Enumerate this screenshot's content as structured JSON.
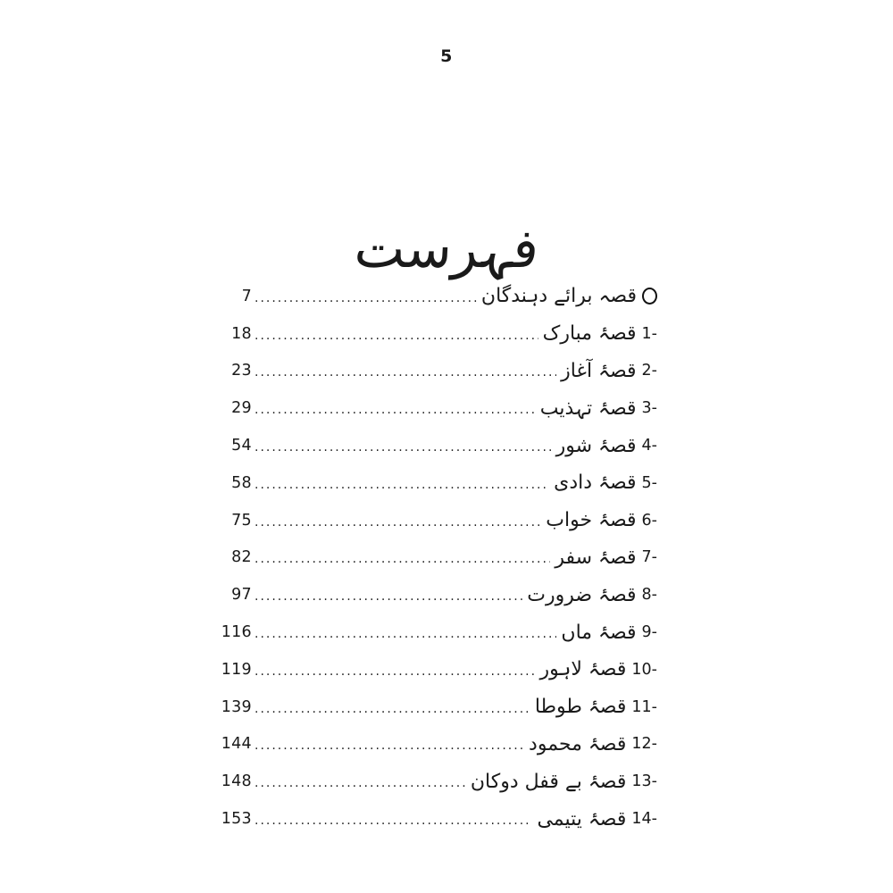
{
  "page": {
    "number": "5"
  },
  "title": "فہرست",
  "toc": {
    "entries": [
      {
        "marker": "O",
        "title": "قصہ برائے دہندگان",
        "page": "7"
      },
      {
        "marker": "1-",
        "title": "قصۂ مبارک",
        "page": "18"
      },
      {
        "marker": "2-",
        "title": "قصۂ آغاز",
        "page": "23"
      },
      {
        "marker": "3-",
        "title": "قصۂ تہذیب",
        "page": "29"
      },
      {
        "marker": "4-",
        "title": "قصۂ شور",
        "page": "54"
      },
      {
        "marker": "5-",
        "title": "قصۂ دادی",
        "page": "58"
      },
      {
        "marker": "6-",
        "title": "قصۂ خواب",
        "page": "75"
      },
      {
        "marker": "7-",
        "title": "قصۂ سفر",
        "page": "82"
      },
      {
        "marker": "8-",
        "title": "قصۂ ضرورت",
        "page": "97"
      },
      {
        "marker": "9-",
        "title": "قصۂ ماں",
        "page": "116"
      },
      {
        "marker": "10-",
        "title": "قصۂ لاہور",
        "page": "119"
      },
      {
        "marker": "11-",
        "title": "قصۂ طوطا",
        "page": "139"
      },
      {
        "marker": "12-",
        "title": "قصۂ محمود",
        "page": "144"
      },
      {
        "marker": "13-",
        "title": "قصۂ بے قفل دوکان",
        "page": "148"
      },
      {
        "marker": "14-",
        "title": "قصۂ یتیمی",
        "page": "153"
      }
    ]
  },
  "colors": {
    "ink": "#1a1a1a",
    "paper": "#ffffff"
  }
}
